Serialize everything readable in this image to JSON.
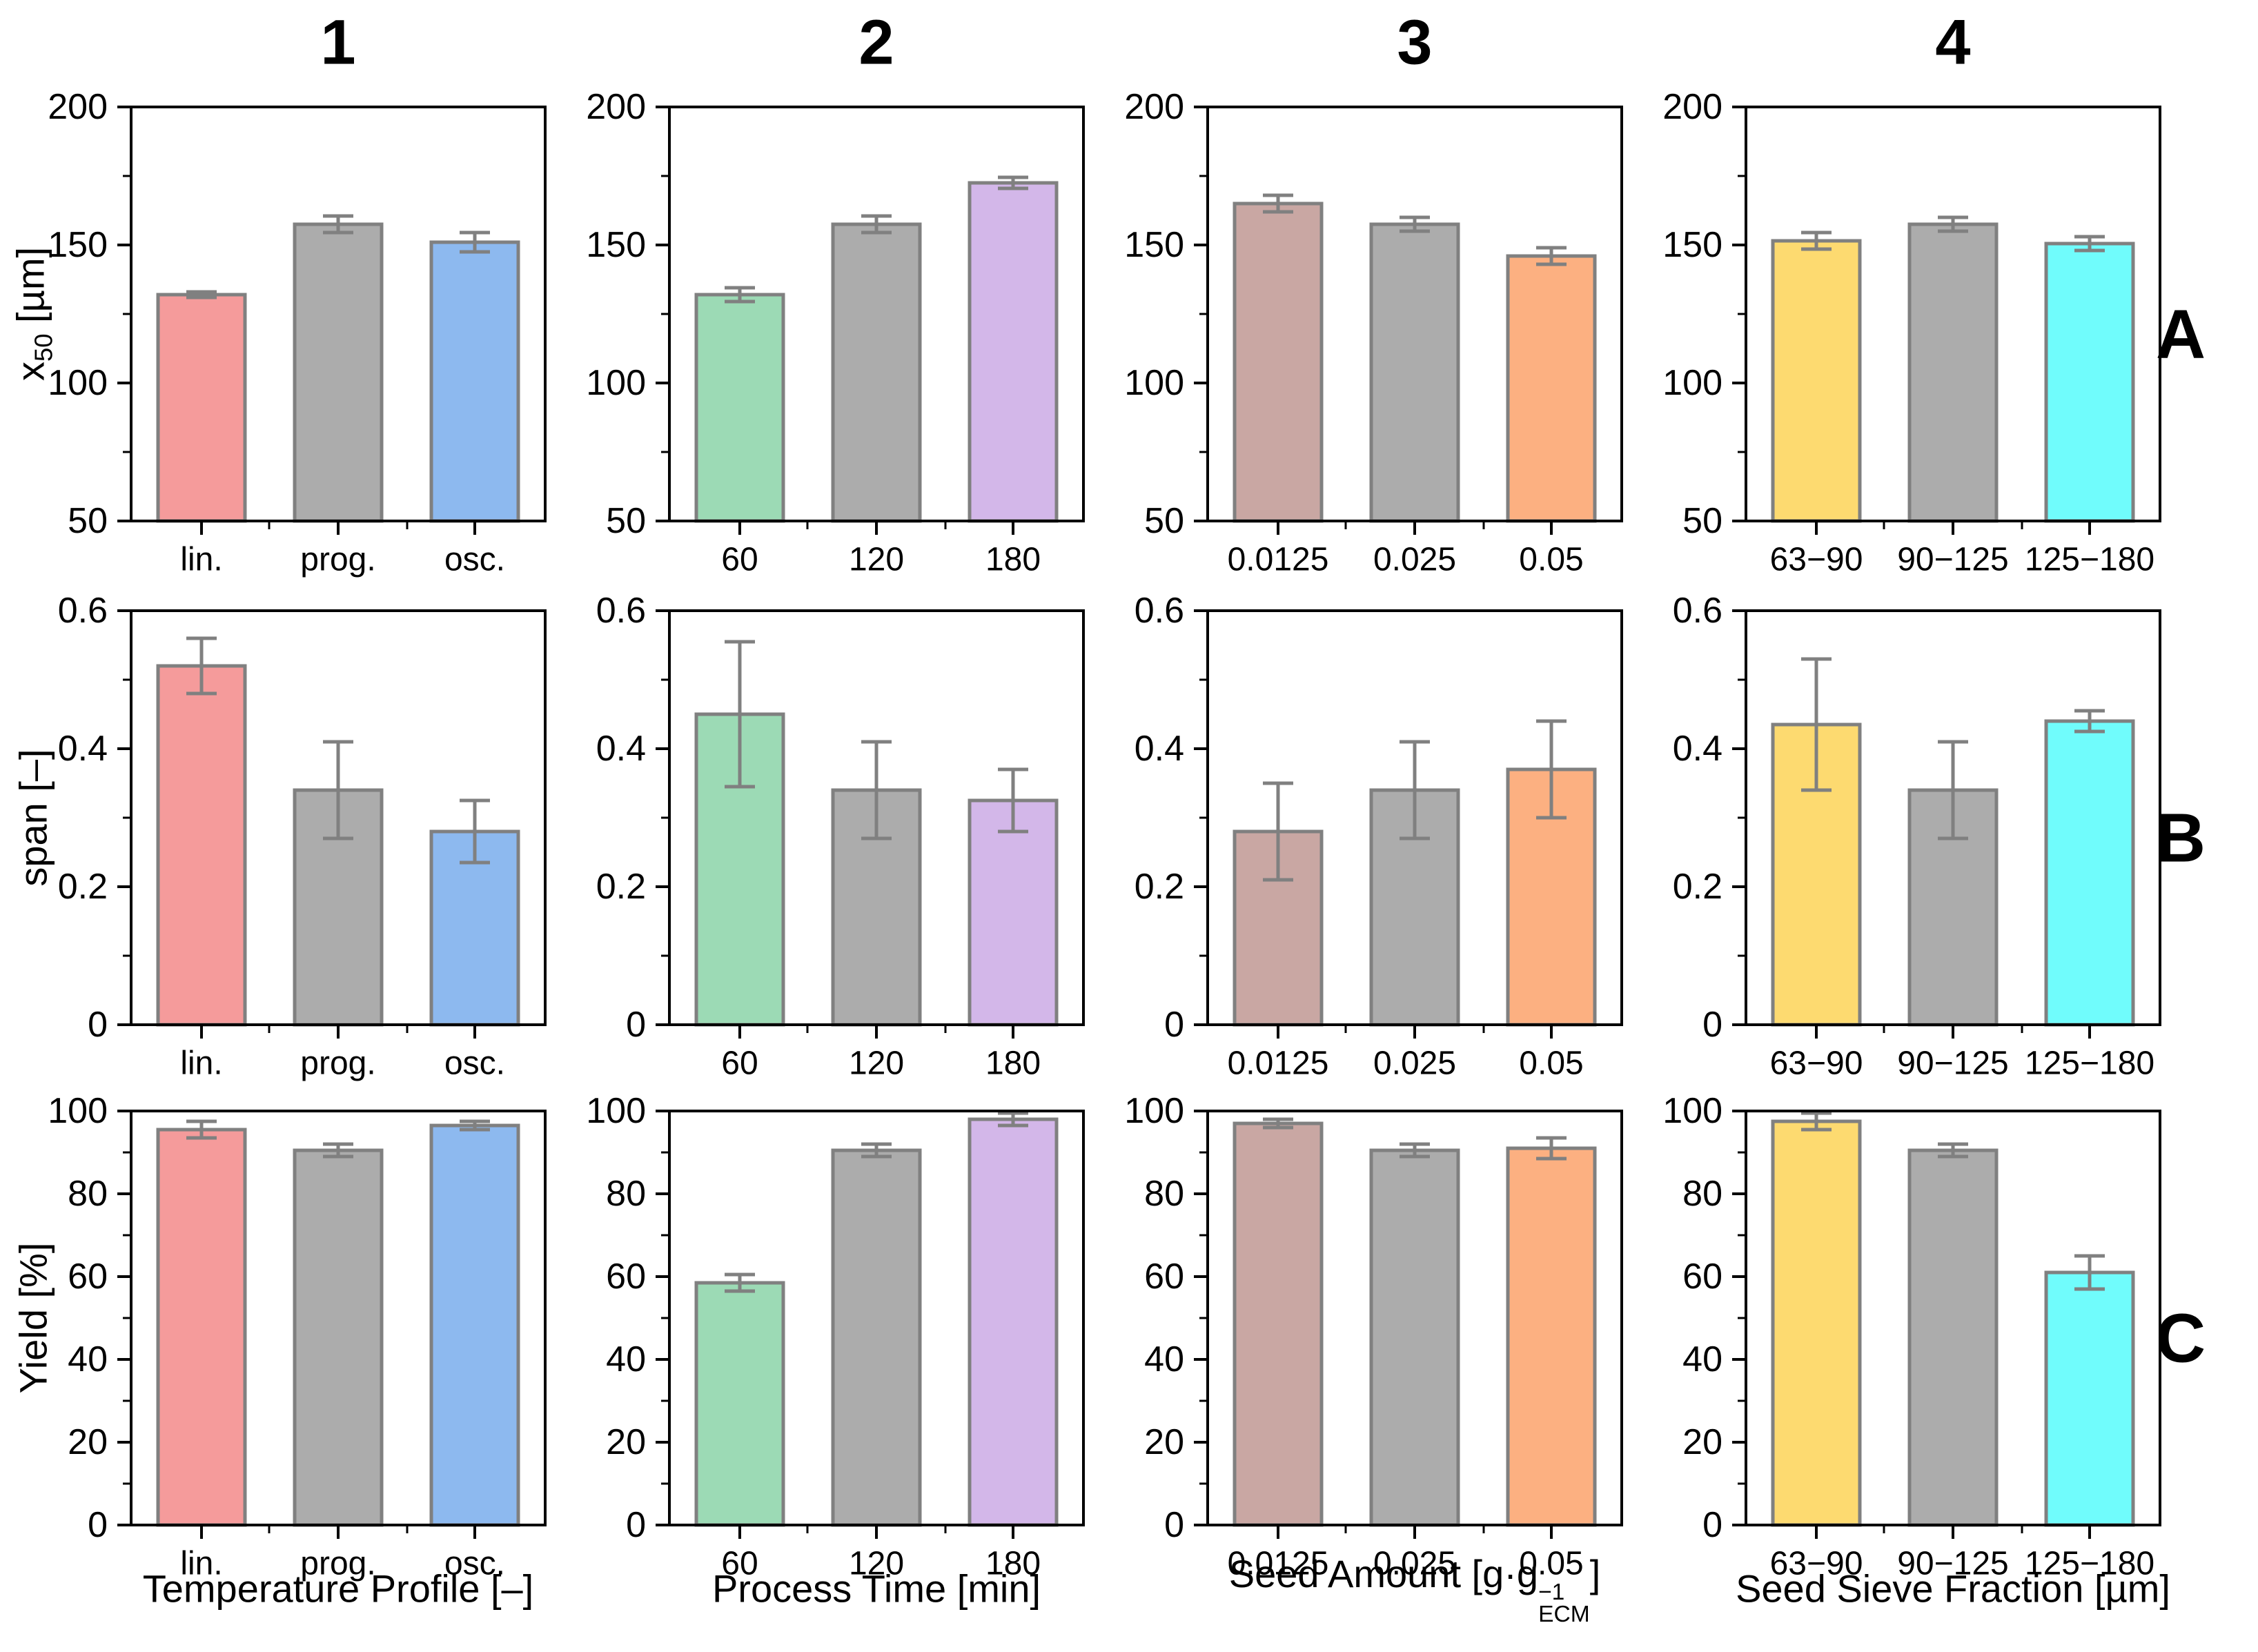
{
  "column_headers": [
    "1",
    "2",
    "3",
    "4"
  ],
  "row_labels": [
    "A",
    "B",
    "C"
  ],
  "rows": [
    {
      "ylabel": "x50 [µm]",
      "ylabel_rich": [
        {
          "t": "x"
        },
        {
          "sub": "50"
        },
        {
          "t": " [µm]"
        }
      ],
      "ylim": [
        50,
        200
      ],
      "yticks": [
        50,
        100,
        150,
        200
      ],
      "yticks_minor": [
        75,
        125,
        175
      ]
    },
    {
      "ylabel": "span [–]",
      "ylabel_rich": [
        {
          "t": "span [–]"
        }
      ],
      "ylim": [
        0,
        0.6
      ],
      "yticks": [
        0,
        0.2,
        0.4,
        0.6
      ],
      "yticks_minor": [
        0.1,
        0.3,
        0.5
      ]
    },
    {
      "ylabel": "Yield [%]",
      "ylabel_rich": [
        {
          "t": "Yield [%]"
        }
      ],
      "ylim": [
        0,
        100
      ],
      "yticks": [
        0,
        20,
        40,
        60,
        80,
        100
      ],
      "yticks_minor": [
        10,
        30,
        50,
        70,
        90
      ]
    }
  ],
  "columns": [
    {
      "header": "1",
      "xlabel": "Temperature Profile [–]",
      "xlabel_rich": [
        {
          "t": "Temperature Profile [–]"
        }
      ],
      "categories": [
        "lin.",
        "prog.",
        "osc."
      ],
      "bar_colors": [
        "#F59B9B",
        "#ACACAC",
        "#8DB9EF"
      ]
    },
    {
      "header": "2",
      "xlabel": "Process Time [min]",
      "xlabel_rich": [
        {
          "t": "Process Time [min]"
        }
      ],
      "categories": [
        "60",
        "120",
        "180"
      ],
      "bar_colors": [
        "#9CDAB5",
        "#ACACAC",
        "#D3B7E9"
      ]
    },
    {
      "header": "3",
      "xlabel": "Seed Amount [g·g⁻¹ECM]",
      "xlabel_rich": [
        {
          "t": "Seed Amount [g·g"
        },
        {
          "sup": "−1",
          "sub": "ECM"
        },
        {
          "t": "]"
        }
      ],
      "categories": [
        "0.0125",
        "0.025",
        "0.05"
      ],
      "bar_colors": [
        "#C9A7A3",
        "#ACACAC",
        "#FCB081"
      ]
    },
    {
      "header": "4",
      "xlabel": "Seed Sieve Fraction [µm]",
      "xlabel_rich": [
        {
          "t": "Seed Sieve Fraction [µm]"
        }
      ],
      "categories": [
        "63−90",
        "90−125",
        "125−180"
      ],
      "bar_colors": [
        "#FDDA70",
        "#ACACAC",
        "#70FCFC"
      ]
    }
  ],
  "style": {
    "background": "#FFFFFF",
    "axis_color": "#000000",
    "bar_edge": "#808080",
    "error_color": "#808080",
    "text_color": "#000000"
  },
  "chart_data": [
    {
      "type": "bar",
      "panel": "A1",
      "row_index": 0,
      "col_index": 0,
      "row_label": "A",
      "col_header": "1",
      "ylabel": "x50 [µm]",
      "xlabel": "Temperature Profile [–]",
      "categories": [
        "lin.",
        "prog.",
        "osc."
      ],
      "values": [
        132,
        157.5,
        151
      ],
      "errors": [
        1,
        3,
        3.5
      ],
      "ylim": [
        50,
        200
      ],
      "yticks": [
        50,
        100,
        150,
        200
      ],
      "yticks_minor": [
        75,
        125,
        175
      ],
      "bar_colors": [
        "#F59B9B",
        "#ACACAC",
        "#8DB9EF"
      ],
      "grid": false
    },
    {
      "type": "bar",
      "panel": "A2",
      "row_index": 0,
      "col_index": 1,
      "row_label": "A",
      "col_header": "2",
      "ylabel": "x50 [µm]",
      "xlabel": "Process Time [min]",
      "categories": [
        "60",
        "120",
        "180"
      ],
      "values": [
        132,
        157.5,
        172.5
      ],
      "errors": [
        2.5,
        3,
        2
      ],
      "ylim": [
        50,
        200
      ],
      "yticks": [
        50,
        100,
        150,
        200
      ],
      "yticks_minor": [
        75,
        125,
        175
      ],
      "bar_colors": [
        "#9CDAB5",
        "#ACACAC",
        "#D3B7E9"
      ],
      "grid": false
    },
    {
      "type": "bar",
      "panel": "A3",
      "row_index": 0,
      "col_index": 2,
      "row_label": "A",
      "col_header": "3",
      "ylabel": "x50 [µm]",
      "xlabel": "Seed Amount [g·g⁻¹ECM]",
      "categories": [
        "0.0125",
        "0.025",
        "0.05"
      ],
      "values": [
        165,
        157.5,
        146
      ],
      "errors": [
        3,
        2.5,
        3
      ],
      "ylim": [
        50,
        200
      ],
      "yticks": [
        50,
        100,
        150,
        200
      ],
      "yticks_minor": [
        75,
        125,
        175
      ],
      "bar_colors": [
        "#C9A7A3",
        "#ACACAC",
        "#FCB081"
      ],
      "grid": false
    },
    {
      "type": "bar",
      "panel": "A4",
      "row_index": 0,
      "col_index": 3,
      "row_label": "A",
      "col_header": "4",
      "ylabel": "x50 [µm]",
      "xlabel": "Seed Sieve Fraction [µm]",
      "categories": [
        "63−90",
        "90−125",
        "125−180"
      ],
      "values": [
        151.5,
        157.5,
        150.5
      ],
      "errors": [
        3,
        2.5,
        2.5
      ],
      "ylim": [
        50,
        200
      ],
      "yticks": [
        50,
        100,
        150,
        200
      ],
      "yticks_minor": [
        75,
        125,
        175
      ],
      "bar_colors": [
        "#FDDA70",
        "#ACACAC",
        "#70FCFC"
      ],
      "grid": false
    },
    {
      "type": "bar",
      "panel": "B1",
      "row_index": 1,
      "col_index": 0,
      "row_label": "B",
      "col_header": "1",
      "ylabel": "span [–]",
      "xlabel": "Temperature Profile [–]",
      "categories": [
        "lin.",
        "prog.",
        "osc."
      ],
      "values": [
        0.52,
        0.34,
        0.28
      ],
      "errors": [
        0.04,
        0.07,
        0.045
      ],
      "ylim": [
        0,
        0.6
      ],
      "yticks": [
        0,
        0.2,
        0.4,
        0.6
      ],
      "yticks_minor": [
        0.1,
        0.3,
        0.5
      ],
      "bar_colors": [
        "#F59B9B",
        "#ACACAC",
        "#8DB9EF"
      ],
      "grid": false
    },
    {
      "type": "bar",
      "panel": "B2",
      "row_index": 1,
      "col_index": 1,
      "row_label": "B",
      "col_header": "2",
      "ylabel": "span [–]",
      "xlabel": "Process Time [min]",
      "categories": [
        "60",
        "120",
        "180"
      ],
      "values": [
        0.45,
        0.34,
        0.325
      ],
      "errors": [
        0.105,
        0.07,
        0.045
      ],
      "ylim": [
        0,
        0.6
      ],
      "yticks": [
        0,
        0.2,
        0.4,
        0.6
      ],
      "yticks_minor": [
        0.1,
        0.3,
        0.5
      ],
      "bar_colors": [
        "#9CDAB5",
        "#ACACAC",
        "#D3B7E9"
      ],
      "grid": false
    },
    {
      "type": "bar",
      "panel": "B3",
      "row_index": 1,
      "col_index": 2,
      "row_label": "B",
      "col_header": "3",
      "ylabel": "span [–]",
      "xlabel": "Seed Amount [g·g⁻¹ECM]",
      "categories": [
        "0.0125",
        "0.025",
        "0.05"
      ],
      "values": [
        0.28,
        0.34,
        0.37
      ],
      "errors": [
        0.07,
        0.07,
        0.07
      ],
      "ylim": [
        0,
        0.6
      ],
      "yticks": [
        0,
        0.2,
        0.4,
        0.6
      ],
      "yticks_minor": [
        0.1,
        0.3,
        0.5
      ],
      "bar_colors": [
        "#C9A7A3",
        "#ACACAC",
        "#FCB081"
      ],
      "grid": false
    },
    {
      "type": "bar",
      "panel": "B4",
      "row_index": 1,
      "col_index": 3,
      "row_label": "B",
      "col_header": "4",
      "ylabel": "span [–]",
      "xlabel": "Seed Sieve Fraction [µm]",
      "categories": [
        "63−90",
        "90−125",
        "125−180"
      ],
      "values": [
        0.435,
        0.34,
        0.44
      ],
      "errors": [
        0.095,
        0.07,
        0.015
      ],
      "ylim": [
        0,
        0.6
      ],
      "yticks": [
        0,
        0.2,
        0.4,
        0.6
      ],
      "yticks_minor": [
        0.1,
        0.3,
        0.5
      ],
      "bar_colors": [
        "#FDDA70",
        "#ACACAC",
        "#70FCFC"
      ],
      "grid": false
    },
    {
      "type": "bar",
      "panel": "C1",
      "row_index": 2,
      "col_index": 0,
      "row_label": "C",
      "col_header": "1",
      "ylabel": "Yield [%]",
      "xlabel": "Temperature Profile [–]",
      "categories": [
        "lin.",
        "prog.",
        "osc."
      ],
      "values": [
        95.5,
        90.5,
        96.5
      ],
      "errors": [
        2,
        1.5,
        1
      ],
      "ylim": [
        0,
        100
      ],
      "yticks": [
        0,
        20,
        40,
        60,
        80,
        100
      ],
      "yticks_minor": [
        10,
        30,
        50,
        70,
        90
      ],
      "bar_colors": [
        "#F59B9B",
        "#ACACAC",
        "#8DB9EF"
      ],
      "grid": false
    },
    {
      "type": "bar",
      "panel": "C2",
      "row_index": 2,
      "col_index": 1,
      "row_label": "C",
      "col_header": "2",
      "ylabel": "Yield [%]",
      "xlabel": "Process Time [min]",
      "categories": [
        "60",
        "120",
        "180"
      ],
      "values": [
        58.5,
        90.5,
        98
      ],
      "errors": [
        2,
        1.5,
        1.5
      ],
      "ylim": [
        0,
        100
      ],
      "yticks": [
        0,
        20,
        40,
        60,
        80,
        100
      ],
      "yticks_minor": [
        10,
        30,
        50,
        70,
        90
      ],
      "bar_colors": [
        "#9CDAB5",
        "#ACACAC",
        "#D3B7E9"
      ],
      "grid": false
    },
    {
      "type": "bar",
      "panel": "C3",
      "row_index": 2,
      "col_index": 2,
      "row_label": "C",
      "col_header": "3",
      "ylabel": "Yield [%]",
      "xlabel": "Seed Amount [g·g⁻¹ECM]",
      "categories": [
        "0.0125",
        "0.025",
        "0.05"
      ],
      "values": [
        97,
        90.5,
        91
      ],
      "errors": [
        1,
        1.5,
        2.5
      ],
      "ylim": [
        0,
        100
      ],
      "yticks": [
        0,
        20,
        40,
        60,
        80,
        100
      ],
      "yticks_minor": [
        10,
        30,
        50,
        70,
        90
      ],
      "bar_colors": [
        "#C9A7A3",
        "#ACACAC",
        "#FCB081"
      ],
      "grid": false
    },
    {
      "type": "bar",
      "panel": "C4",
      "row_index": 2,
      "col_index": 3,
      "row_label": "C",
      "col_header": "4",
      "ylabel": "Yield [%]",
      "xlabel": "Seed Sieve Fraction [µm]",
      "categories": [
        "63−90",
        "90−125",
        "125−180"
      ],
      "values": [
        97.5,
        90.5,
        61
      ],
      "errors": [
        2,
        1.5,
        4
      ],
      "ylim": [
        0,
        100
      ],
      "yticks": [
        0,
        20,
        40,
        60,
        80,
        100
      ],
      "yticks_minor": [
        10,
        30,
        50,
        70,
        90
      ],
      "bar_colors": [
        "#FDDA70",
        "#ACACAC",
        "#70FCFC"
      ],
      "grid": false
    }
  ]
}
